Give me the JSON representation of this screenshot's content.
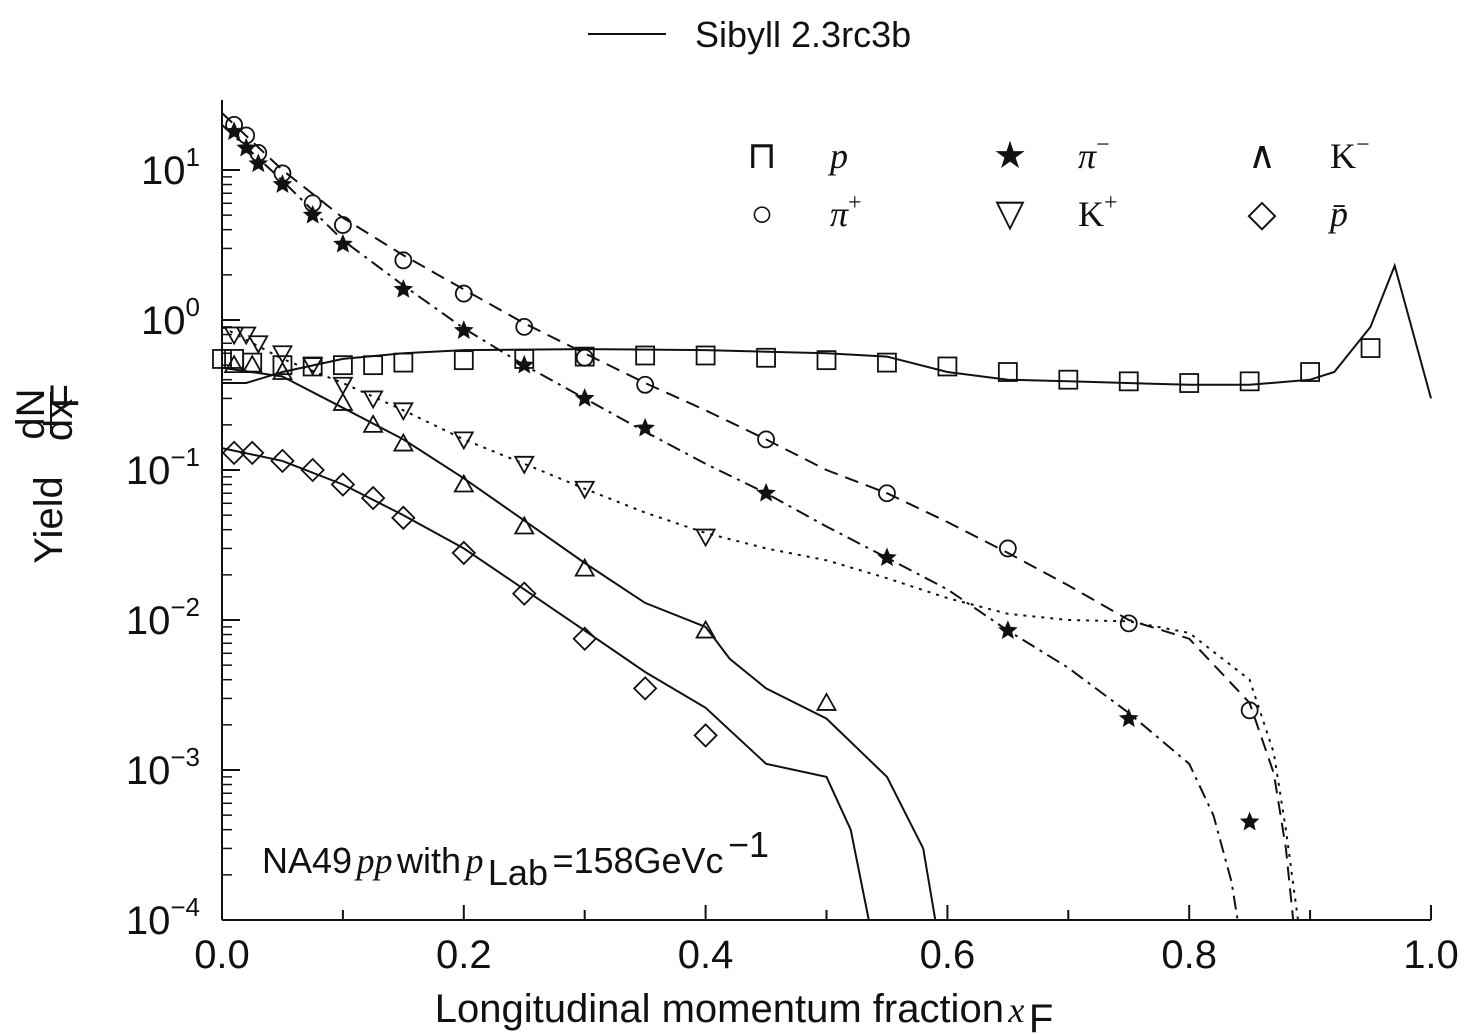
{
  "chart_data": {
    "type": "scatter",
    "legend_top": "Sibyll 2.3rc3b",
    "xlabel": "Longitudinal momentum fraction",
    "xlabel_var": "x",
    "xlabel_sub": "F",
    "ylabel_prefix": "Yield",
    "ylabel_num": "dN",
    "ylabel_den": "dx",
    "ylabel_den_sub": "F",
    "xlim": [
      0.0,
      1.0
    ],
    "ylim": [
      0.0001,
      30
    ],
    "yscale": "log",
    "x_ticks": [
      "0.0",
      "0.2",
      "0.4",
      "0.6",
      "0.8",
      "1.0"
    ],
    "y_ticks": [
      {
        "base": "10",
        "exp": "1"
      },
      {
        "base": "10",
        "exp": "0"
      },
      {
        "base": "10",
        "exp": "−1"
      },
      {
        "base": "10",
        "exp": "−2"
      },
      {
        "base": "10",
        "exp": "−3"
      },
      {
        "base": "10",
        "exp": "−4"
      }
    ],
    "legend_placement": "top-right inside plot",
    "annotation": {
      "prefix": "NA49",
      "italic": "pp",
      "mid": "with",
      "var": "p",
      "var_sub": "Lab",
      "value": "=158GeVc",
      "exp": "−1"
    },
    "legend": [
      {
        "symbol": "⊓",
        "label": "p",
        "style": "math"
      },
      {
        "symbol": "★",
        "label": "π",
        "sup": "−",
        "style": "math"
      },
      {
        "symbol": "∧",
        "label": "K",
        "sup": "−",
        "style": "roman"
      },
      {
        "symbol": "○",
        "label": "π",
        "sup": "+",
        "style": "math"
      },
      {
        "symbol": "▽",
        "label": "K",
        "sup": "+",
        "style": "roman"
      },
      {
        "symbol": "◇",
        "label": "p̄",
        "style": "math"
      }
    ],
    "series": [
      {
        "name": "p",
        "marker": "square",
        "points": [
          [
            0.0,
            0.55
          ],
          [
            0.01,
            0.55
          ],
          [
            0.025,
            0.52
          ],
          [
            0.05,
            0.5
          ],
          [
            0.075,
            0.49
          ],
          [
            0.1,
            0.5
          ],
          [
            0.125,
            0.5
          ],
          [
            0.15,
            0.52
          ],
          [
            0.2,
            0.54
          ],
          [
            0.25,
            0.55
          ],
          [
            0.3,
            0.57
          ],
          [
            0.35,
            0.58
          ],
          [
            0.4,
            0.58
          ],
          [
            0.45,
            0.56
          ],
          [
            0.5,
            0.54
          ],
          [
            0.55,
            0.52
          ],
          [
            0.6,
            0.49
          ],
          [
            0.65,
            0.45
          ],
          [
            0.7,
            0.4
          ],
          [
            0.75,
            0.39
          ],
          [
            0.8,
            0.38
          ],
          [
            0.85,
            0.39
          ],
          [
            0.9,
            0.45
          ],
          [
            0.95,
            0.65
          ]
        ],
        "model": [
          [
            0.0,
            0.38
          ],
          [
            0.02,
            0.38
          ],
          [
            0.05,
            0.45
          ],
          [
            0.1,
            0.55
          ],
          [
            0.15,
            0.6
          ],
          [
            0.2,
            0.63
          ],
          [
            0.3,
            0.64
          ],
          [
            0.4,
            0.63
          ],
          [
            0.5,
            0.6
          ],
          [
            0.55,
            0.57
          ],
          [
            0.6,
            0.45
          ],
          [
            0.65,
            0.4
          ],
          [
            0.7,
            0.39
          ],
          [
            0.8,
            0.37
          ],
          [
            0.85,
            0.37
          ],
          [
            0.9,
            0.4
          ],
          [
            0.92,
            0.45
          ],
          [
            0.95,
            0.9
          ],
          [
            0.97,
            2.3
          ],
          [
            1.0,
            0.3
          ]
        ],
        "dash": ""
      },
      {
        "name": "π+",
        "marker": "circle",
        "points": [
          [
            0.01,
            20
          ],
          [
            0.02,
            17
          ],
          [
            0.03,
            13
          ],
          [
            0.05,
            9.5
          ],
          [
            0.075,
            6
          ],
          [
            0.1,
            4.3
          ],
          [
            0.15,
            2.5
          ],
          [
            0.2,
            1.5
          ],
          [
            0.25,
            0.9
          ],
          [
            0.3,
            0.56
          ],
          [
            0.35,
            0.37
          ],
          [
            0.45,
            0.16
          ],
          [
            0.55,
            0.07
          ],
          [
            0.65,
            0.03
          ],
          [
            0.75,
            0.0095
          ],
          [
            0.85,
            0.0025
          ]
        ],
        "model": [
          [
            0.0,
            24
          ],
          [
            0.05,
            10
          ],
          [
            0.1,
            4.8
          ],
          [
            0.15,
            2.7
          ],
          [
            0.2,
            1.6
          ],
          [
            0.25,
            0.95
          ],
          [
            0.3,
            0.6
          ],
          [
            0.35,
            0.38
          ],
          [
            0.4,
            0.25
          ],
          [
            0.45,
            0.16
          ],
          [
            0.5,
            0.1
          ],
          [
            0.55,
            0.07
          ],
          [
            0.6,
            0.045
          ],
          [
            0.65,
            0.028
          ],
          [
            0.7,
            0.017
          ],
          [
            0.75,
            0.01
          ],
          [
            0.8,
            0.0075
          ],
          [
            0.85,
            0.0028
          ],
          [
            0.87,
            0.00095
          ],
          [
            0.88,
            0.0003
          ],
          [
            0.886,
            0.0001
          ]
        ],
        "dash": "14 8"
      },
      {
        "name": "π−",
        "marker": "star",
        "points": [
          [
            0.01,
            18
          ],
          [
            0.02,
            14
          ],
          [
            0.03,
            11
          ],
          [
            0.05,
            8
          ],
          [
            0.075,
            5
          ],
          [
            0.1,
            3.2
          ],
          [
            0.15,
            1.6
          ],
          [
            0.2,
            0.85
          ],
          [
            0.25,
            0.5
          ],
          [
            0.3,
            0.3
          ],
          [
            0.35,
            0.19
          ],
          [
            0.45,
            0.07
          ],
          [
            0.55,
            0.026
          ],
          [
            0.65,
            0.0085
          ],
          [
            0.75,
            0.0022
          ],
          [
            0.85,
            0.00045
          ]
        ],
        "model": [
          [
            0.0,
            20
          ],
          [
            0.05,
            8.5
          ],
          [
            0.1,
            3.4
          ],
          [
            0.15,
            1.7
          ],
          [
            0.2,
            0.88
          ],
          [
            0.25,
            0.5
          ],
          [
            0.3,
            0.3
          ],
          [
            0.35,
            0.18
          ],
          [
            0.4,
            0.11
          ],
          [
            0.45,
            0.07
          ],
          [
            0.5,
            0.042
          ],
          [
            0.55,
            0.026
          ],
          [
            0.6,
            0.016
          ],
          [
            0.65,
            0.0085
          ],
          [
            0.7,
            0.0048
          ],
          [
            0.75,
            0.0024
          ],
          [
            0.8,
            0.0011
          ],
          [
            0.82,
            0.0005
          ],
          [
            0.835,
            0.00018
          ],
          [
            0.84,
            0.0001
          ]
        ],
        "dash": "14 6 3 6"
      },
      {
        "name": "K+",
        "marker": "tri-down",
        "points": [
          [
            0.01,
            0.8
          ],
          [
            0.02,
            0.8
          ],
          [
            0.03,
            0.7
          ],
          [
            0.05,
            0.6
          ],
          [
            0.075,
            0.5
          ],
          [
            0.1,
            0.37
          ],
          [
            0.125,
            0.3
          ],
          [
            0.15,
            0.25
          ],
          [
            0.2,
            0.16
          ],
          [
            0.25,
            0.11
          ],
          [
            0.3,
            0.075
          ],
          [
            0.4,
            0.036
          ]
        ],
        "model": [
          [
            0.0,
            0.9
          ],
          [
            0.05,
            0.55
          ],
          [
            0.1,
            0.38
          ],
          [
            0.15,
            0.25
          ],
          [
            0.2,
            0.16
          ],
          [
            0.25,
            0.11
          ],
          [
            0.3,
            0.075
          ],
          [
            0.35,
            0.052
          ],
          [
            0.4,
            0.038
          ],
          [
            0.45,
            0.03
          ],
          [
            0.5,
            0.025
          ],
          [
            0.55,
            0.019
          ],
          [
            0.6,
            0.014
          ],
          [
            0.65,
            0.011
          ],
          [
            0.7,
            0.01
          ],
          [
            0.75,
            0.0098
          ],
          [
            0.8,
            0.0082
          ],
          [
            0.85,
            0.004
          ],
          [
            0.87,
            0.0013
          ],
          [
            0.88,
            0.0004
          ],
          [
            0.89,
            0.0001
          ]
        ],
        "dash": "3 6"
      },
      {
        "name": "K−",
        "marker": "tri-up",
        "points": [
          [
            0.01,
            0.5
          ],
          [
            0.025,
            0.5
          ],
          [
            0.05,
            0.45
          ],
          [
            0.1,
            0.28
          ],
          [
            0.125,
            0.2
          ],
          [
            0.15,
            0.15
          ],
          [
            0.2,
            0.08
          ],
          [
            0.25,
            0.042
          ],
          [
            0.3,
            0.022
          ],
          [
            0.4,
            0.0085
          ],
          [
            0.5,
            0.0028
          ]
        ],
        "model": [
          [
            0.0,
            0.48
          ],
          [
            0.05,
            0.42
          ],
          [
            0.1,
            0.26
          ],
          [
            0.15,
            0.16
          ],
          [
            0.2,
            0.088
          ],
          [
            0.25,
            0.046
          ],
          [
            0.3,
            0.024
          ],
          [
            0.35,
            0.013
          ],
          [
            0.4,
            0.009
          ],
          [
            0.42,
            0.0055
          ],
          [
            0.45,
            0.0035
          ],
          [
            0.5,
            0.0022
          ],
          [
            0.55,
            0.0009
          ],
          [
            0.58,
            0.0003
          ],
          [
            0.59,
            0.0001
          ]
        ],
        "dash": ""
      },
      {
        "name": "p̄",
        "marker": "diamond",
        "points": [
          [
            0.01,
            0.13
          ],
          [
            0.025,
            0.13
          ],
          [
            0.05,
            0.115
          ],
          [
            0.075,
            0.1
          ],
          [
            0.1,
            0.08
          ],
          [
            0.125,
            0.065
          ],
          [
            0.15,
            0.048
          ],
          [
            0.2,
            0.028
          ],
          [
            0.25,
            0.015
          ],
          [
            0.3,
            0.0075
          ],
          [
            0.35,
            0.0035
          ],
          [
            0.4,
            0.0017
          ]
        ],
        "model": [
          [
            0.0,
            0.14
          ],
          [
            0.05,
            0.115
          ],
          [
            0.1,
            0.08
          ],
          [
            0.15,
            0.05
          ],
          [
            0.2,
            0.03
          ],
          [
            0.25,
            0.016
          ],
          [
            0.3,
            0.0085
          ],
          [
            0.35,
            0.0045
          ],
          [
            0.4,
            0.0026
          ],
          [
            0.45,
            0.0011
          ],
          [
            0.5,
            0.0009
          ],
          [
            0.52,
            0.0004
          ],
          [
            0.535,
            0.0001
          ]
        ],
        "dash": ""
      }
    ]
  }
}
